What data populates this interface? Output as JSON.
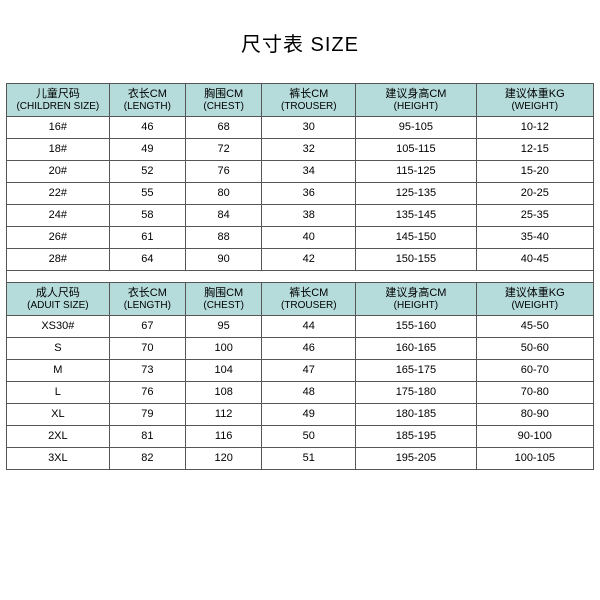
{
  "title": "尺寸表 SIZE",
  "header_bg": "#b5dbdb",
  "colors": {
    "border": "#555555",
    "background": "#ffffff",
    "text": "#000000"
  },
  "children": {
    "columns": [
      {
        "cn": "儿童尺码",
        "en": "(CHILDREN SIZE)"
      },
      {
        "cn": "衣长CM",
        "en": "(LENGTH)"
      },
      {
        "cn": "胸围CM",
        "en": "(CHEST)"
      },
      {
        "cn": "裤长CM",
        "en": "(TROUSER)"
      },
      {
        "cn": "建议身高CM",
        "en": "(HEIGHT)"
      },
      {
        "cn": "建议体重KG",
        "en": "(WEIGHT)"
      }
    ],
    "rows": [
      [
        "16#",
        "46",
        "68",
        "30",
        "95-105",
        "10-12"
      ],
      [
        "18#",
        "49",
        "72",
        "32",
        "105-115",
        "12-15"
      ],
      [
        "20#",
        "52",
        "76",
        "34",
        "115-125",
        "15-20"
      ],
      [
        "22#",
        "55",
        "80",
        "36",
        "125-135",
        "20-25"
      ],
      [
        "24#",
        "58",
        "84",
        "38",
        "135-145",
        "25-35"
      ],
      [
        "26#",
        "61",
        "88",
        "40",
        "145-150",
        "35-40"
      ],
      [
        "28#",
        "64",
        "90",
        "42",
        "150-155",
        "40-45"
      ]
    ]
  },
  "adult": {
    "columns": [
      {
        "cn": "成人尺码",
        "en": "(ADUIT SIZE)"
      },
      {
        "cn": "衣长CM",
        "en": "(LENGTH)"
      },
      {
        "cn": "胸围CM",
        "en": "(CHEST)"
      },
      {
        "cn": "裤长CM",
        "en": "(TROUSER)"
      },
      {
        "cn": "建议身高CM",
        "en": "(HEIGHT)"
      },
      {
        "cn": "建议体重KG",
        "en": "(WEIGHT)"
      }
    ],
    "rows": [
      [
        "XS30#",
        "67",
        "95",
        "44",
        "155-160",
        "45-50"
      ],
      [
        "S",
        "70",
        "100",
        "46",
        "160-165",
        "50-60"
      ],
      [
        "M",
        "73",
        "104",
        "47",
        "165-175",
        "60-70"
      ],
      [
        "L",
        "76",
        "108",
        "48",
        "175-180",
        "70-80"
      ],
      [
        "XL",
        "79",
        "112",
        "49",
        "180-185",
        "80-90"
      ],
      [
        "2XL",
        "81",
        "116",
        "50",
        "185-195",
        "90-100"
      ],
      [
        "3XL",
        "82",
        "120",
        "51",
        "195-205",
        "100-105"
      ]
    ]
  }
}
